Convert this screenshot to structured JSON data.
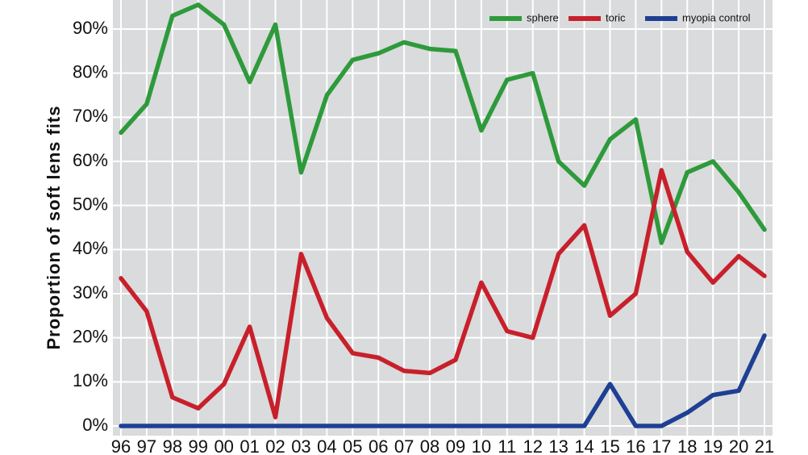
{
  "chart_data": {
    "type": "line",
    "ylabel": "Proportion of soft lens fits",
    "xlabel": "",
    "x": [
      "96",
      "97",
      "98",
      "99",
      "00",
      "01",
      "02",
      "03",
      "04",
      "05",
      "06",
      "07",
      "08",
      "09",
      "10",
      "11",
      "12",
      "13",
      "14",
      "15",
      "16",
      "17",
      "18",
      "19",
      "20",
      "21"
    ],
    "ylim": [
      0,
      97
    ],
    "yticks": [
      0,
      10,
      20,
      30,
      40,
      50,
      60,
      70,
      80,
      90
    ],
    "ytick_labels": [
      "0%",
      "10%",
      "20%",
      "30%",
      "40%",
      "50%",
      "60%",
      "70%",
      "80%",
      "90%"
    ],
    "grid": true,
    "legend_position": "top-right",
    "series": [
      {
        "name": "sphere",
        "color": "#2e9a3b",
        "values": [
          66.5,
          73,
          93,
          95.5,
          91,
          78,
          91,
          57.5,
          75,
          83,
          84.5,
          87,
          85.5,
          85,
          67,
          78.5,
          80,
          60,
          54.5,
          65,
          69.5,
          41.5,
          57.5,
          60,
          53,
          44.5
        ]
      },
      {
        "name": "toric",
        "color": "#c8202b",
        "values": [
          33.5,
          26,
          6.5,
          4,
          9.5,
          22.5,
          2,
          39,
          24.5,
          16.5,
          15.5,
          12.5,
          12,
          15,
          32.5,
          21.5,
          20,
          39,
          45.5,
          25,
          30,
          58,
          39.5,
          32.5,
          38.5,
          34
        ]
      },
      {
        "name": "myopia control",
        "color": "#1f3f93",
        "values": [
          0,
          0,
          0,
          0,
          0,
          0,
          0,
          0,
          0,
          0,
          0,
          0,
          0,
          0,
          0,
          0,
          0,
          0,
          0,
          9.5,
          0,
          0,
          3,
          7,
          8,
          20.5
        ]
      }
    ]
  },
  "colors": {
    "plot_background": "#d9dbdc",
    "grid": "#ffffff"
  }
}
